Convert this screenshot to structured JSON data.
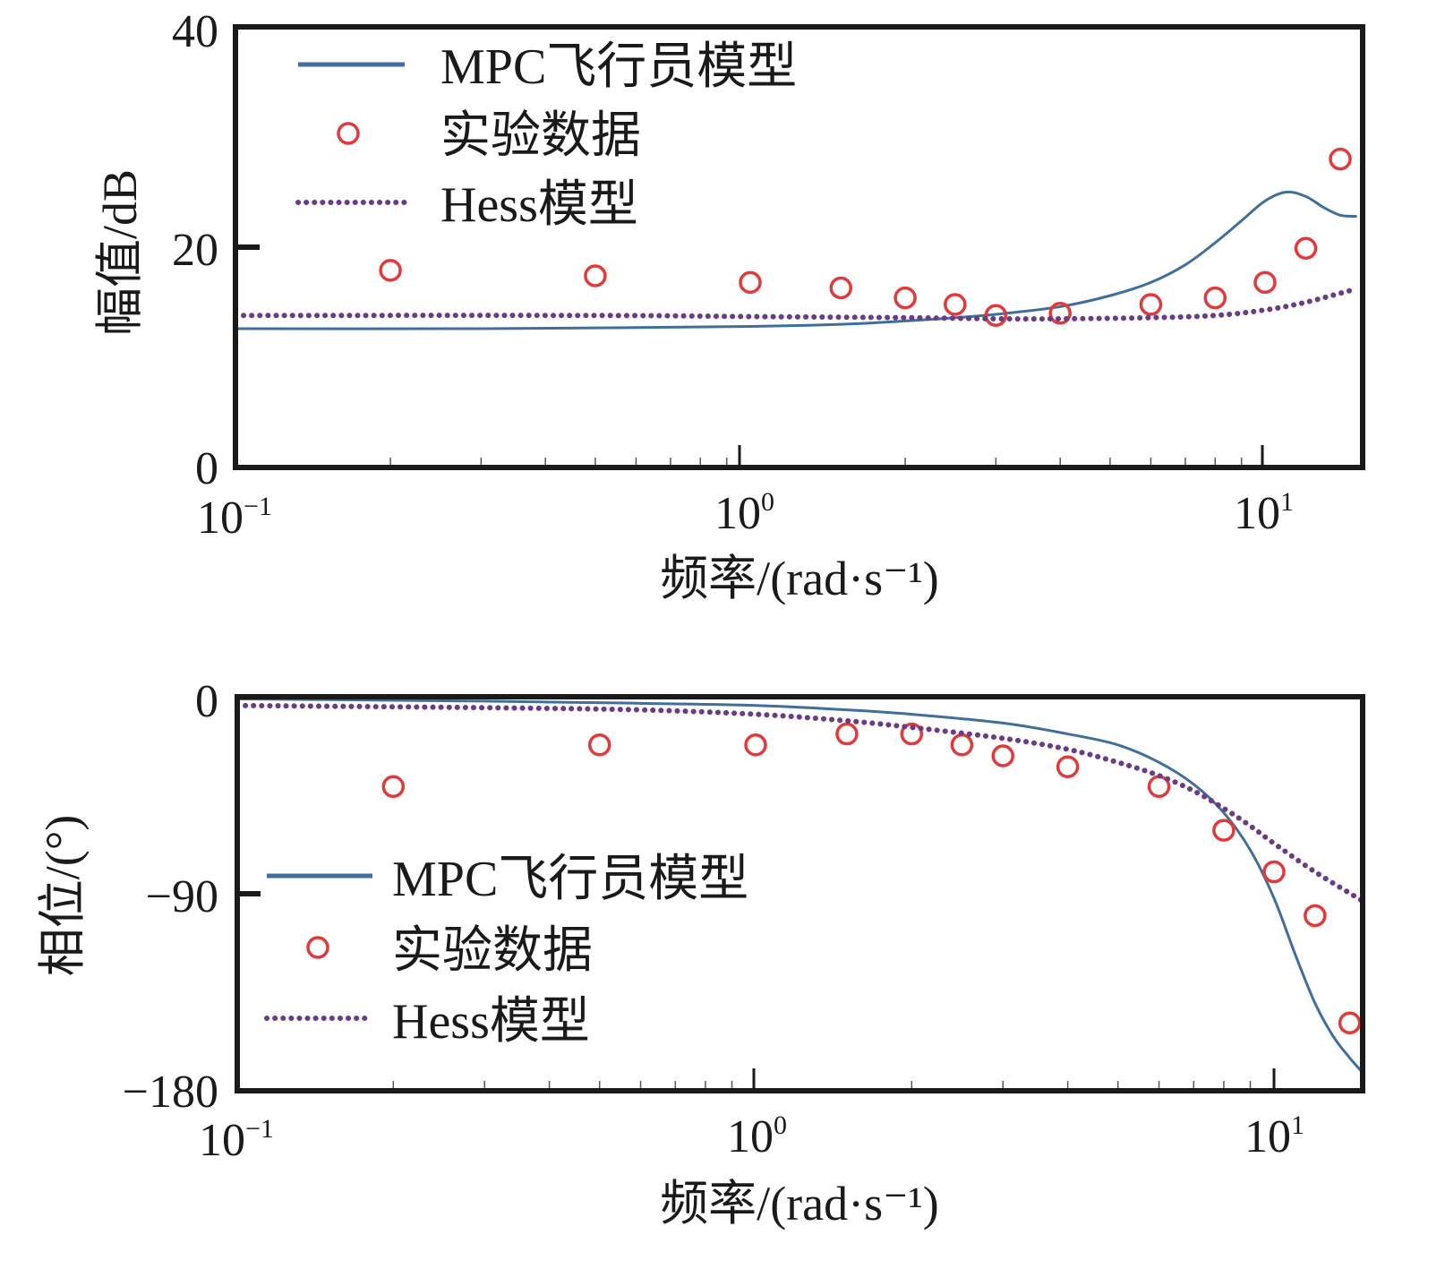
{
  "colors": {
    "mpc": "#3f6f9c",
    "exp": "#e23a3a",
    "hess": "#6a3b86",
    "axis": "#1a1a1a"
  },
  "chart_data": [
    {
      "type": "line",
      "id": "magnitude",
      "title": "",
      "xlabel": "频率/(rad·s⁻¹)",
      "ylabel": "幅值/dB",
      "xscale": "log",
      "xlim": [
        0.1,
        15
      ],
      "ylim": [
        0,
        40
      ],
      "yticks": [
        0,
        20,
        40
      ],
      "ytick_labels": [
        "0",
        "20",
        "40"
      ],
      "xticks": [
        0.1,
        1,
        10
      ],
      "xtick_labels": [
        {
          "base": "10",
          "exp": "−1"
        },
        {
          "base": "10",
          "exp": "0"
        },
        {
          "base": "10",
          "exp": "1"
        }
      ],
      "legend_position": "top-left",
      "legend": [
        "MPC飞行员模型",
        "实验数据",
        "Hess模型"
      ],
      "series": [
        {
          "name": "MPC飞行员模型",
          "style": "solid",
          "x": [
            0.1,
            0.3,
            0.6,
            1.0,
            1.5,
            2.0,
            2.5,
            3.0,
            4.0,
            5.0,
            6.0,
            7.0,
            8.0,
            9.0,
            10.0,
            11.0,
            12.0,
            13.0,
            14.0,
            15.0
          ],
          "y": [
            12.6,
            12.6,
            12.7,
            12.8,
            13.0,
            13.3,
            13.6,
            13.9,
            14.6,
            15.6,
            16.8,
            18.4,
            20.4,
            22.4,
            24.2,
            25.0,
            24.6,
            23.6,
            22.9,
            22.8
          ]
        },
        {
          "name": "实验数据",
          "style": "markers",
          "x": [
            0.2,
            0.5,
            1.0,
            1.5,
            2.0,
            2.5,
            3.0,
            4.0,
            6.0,
            8.0,
            10.0,
            12.0,
            14.0
          ],
          "y": [
            17.9,
            17.4,
            16.8,
            16.3,
            15.4,
            14.8,
            13.8,
            14.0,
            14.8,
            15.4,
            16.8,
            19.9,
            28.0
          ]
        },
        {
          "name": "Hess模型",
          "style": "dotted",
          "x": [
            0.1,
            0.5,
            1.0,
            2.0,
            3.0,
            4.0,
            6.0,
            8.0,
            10.0,
            12.0,
            15.0
          ],
          "y": [
            13.8,
            13.8,
            13.7,
            13.6,
            13.5,
            13.5,
            13.6,
            13.8,
            14.3,
            15.0,
            16.2
          ]
        }
      ]
    },
    {
      "type": "line",
      "id": "phase",
      "title": "",
      "xlabel": "频率/(rad·s⁻¹)",
      "ylabel": "相位/(°)",
      "xscale": "log",
      "xlim": [
        0.1,
        15
      ],
      "ylim": [
        -180,
        0
      ],
      "yticks": [
        -180,
        -90,
        0
      ],
      "ytick_labels": [
        "−180",
        "−90",
        "0"
      ],
      "xticks": [
        0.1,
        1,
        10
      ],
      "xtick_labels": [
        {
          "base": "10",
          "exp": "−1"
        },
        {
          "base": "10",
          "exp": "0"
        },
        {
          "base": "10",
          "exp": "1"
        }
      ],
      "legend_position": "center-left",
      "legend": [
        "MPC飞行员模型",
        "实验数据",
        "Hess模型"
      ],
      "series": [
        {
          "name": "MPC飞行员模型",
          "style": "solid",
          "x": [
            0.1,
            0.3,
            0.6,
            1.0,
            1.5,
            2.0,
            3.0,
            4.0,
            5.0,
            6.0,
            7.0,
            8.0,
            9.0,
            10.0,
            11.0,
            12.0,
            13.0,
            14.0,
            15.0
          ],
          "y": [
            -1,
            -2,
            -3,
            -4,
            -6,
            -8,
            -12,
            -17,
            -22,
            -30,
            -40,
            -53,
            -70,
            -92,
            -118,
            -140,
            -155,
            -165,
            -173
          ]
        },
        {
          "name": "实验数据",
          "style": "markers",
          "x": [
            0.2,
            0.5,
            1.0,
            1.5,
            2.0,
            2.5,
            3.0,
            4.0,
            6.0,
            8.0,
            10.0,
            12.0,
            14.0
          ],
          "y": [
            -41,
            -22,
            -22,
            -17,
            -17,
            -22,
            -27,
            -32,
            -41,
            -61,
            -80,
            -100,
            -149
          ]
        },
        {
          "name": "Hess模型",
          "style": "dotted",
          "x": [
            0.1,
            0.3,
            0.6,
            1.0,
            1.5,
            2.0,
            3.0,
            4.0,
            5.0,
            6.0,
            7.0,
            8.0,
            9.0,
            10.0,
            12.0,
            15.0
          ],
          "y": [
            -4,
            -5,
            -6,
            -8,
            -11,
            -14,
            -19,
            -24,
            -30,
            -36,
            -43,
            -51,
            -59,
            -67,
            -80,
            -94
          ]
        }
      ]
    }
  ]
}
